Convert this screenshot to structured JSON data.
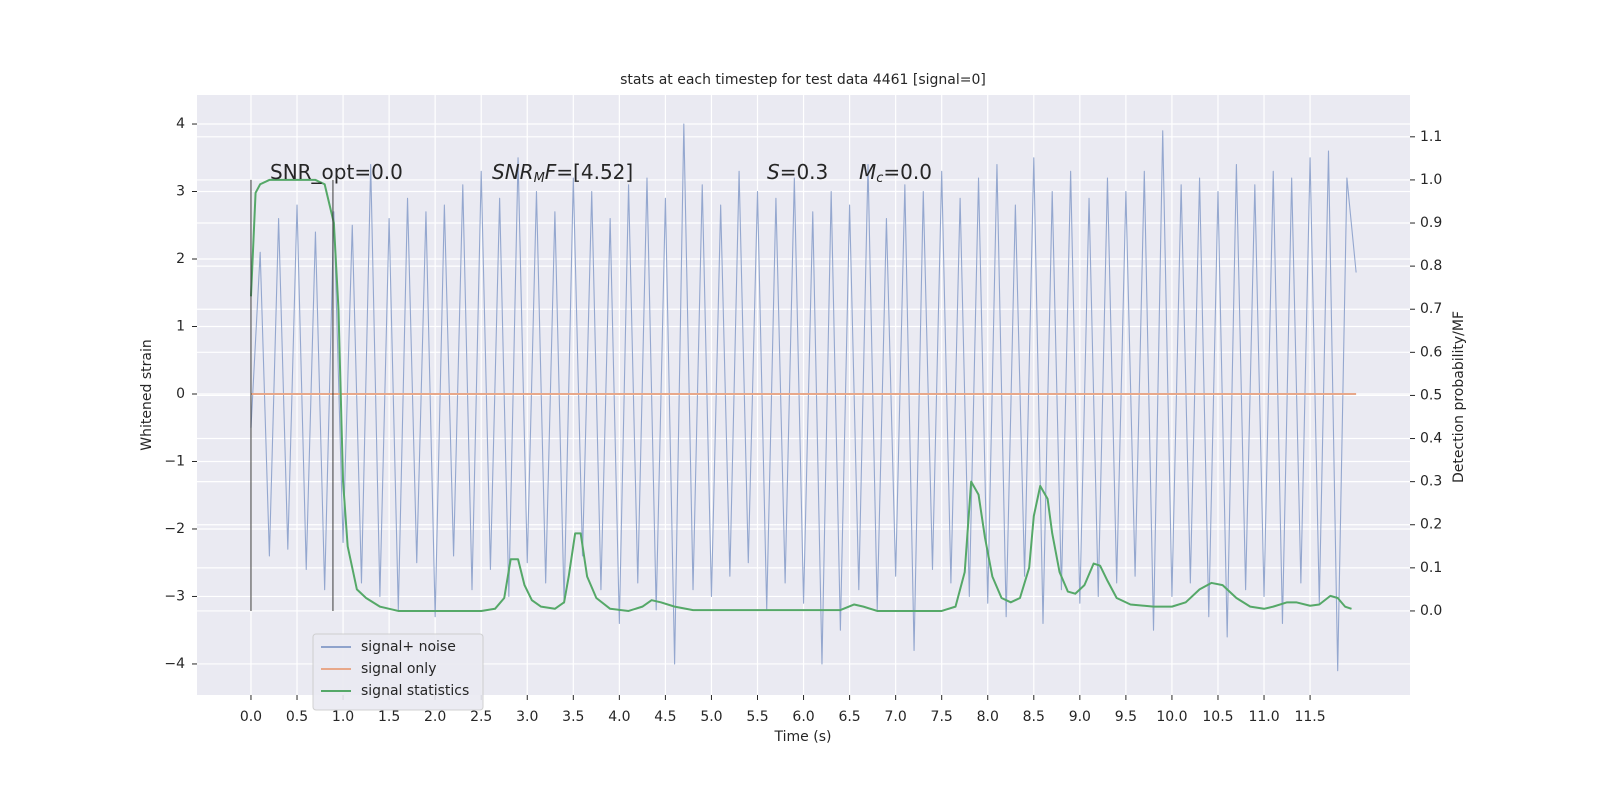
{
  "chart_data": {
    "type": "line",
    "title": "stats at each timestep for test data 4461 [signal=0]",
    "xlabel": "Time (s)",
    "ylabel": "Whitened strain",
    "y2label": "Detection probability/MF",
    "xlim": [
      -0.586,
      12.585
    ],
    "ylim": [
      -4.46,
      4.43
    ],
    "y2lim": [
      -0.195,
      1.197
    ],
    "xticks": [
      {
        "value": 0,
        "label": "0.0"
      },
      {
        "value": 0.5,
        "label": "0.5"
      },
      {
        "value": 1,
        "label": "1.0"
      },
      {
        "value": 1.5,
        "label": "1.5"
      },
      {
        "value": 2,
        "label": "2.0"
      },
      {
        "value": 2.5,
        "label": "2.5"
      },
      {
        "value": 3,
        "label": "3.0"
      },
      {
        "value": 3.5,
        "label": "3.5"
      },
      {
        "value": 4,
        "label": "4.0"
      },
      {
        "value": 4.5,
        "label": "4.5"
      },
      {
        "value": 5,
        "label": "5.0"
      },
      {
        "value": 5.5,
        "label": "5.5"
      },
      {
        "value": 6,
        "label": "6.0"
      },
      {
        "value": 6.5,
        "label": "6.5"
      },
      {
        "value": 7,
        "label": "7.0"
      },
      {
        "value": 7.5,
        "label": "7.5"
      },
      {
        "value": 8,
        "label": "8.0"
      },
      {
        "value": 8.5,
        "label": "8.5"
      },
      {
        "value": 9,
        "label": "9.0"
      },
      {
        "value": 9.5,
        "label": "9.5"
      },
      {
        "value": 10,
        "label": "10.0"
      },
      {
        "value": 10.5,
        "label": "10.5"
      },
      {
        "value": 11,
        "label": "11.0"
      },
      {
        "value": 11.5,
        "label": "11.5"
      }
    ],
    "yticks": [
      {
        "value": -4,
        "label": "−4"
      },
      {
        "value": -3,
        "label": "−3"
      },
      {
        "value": -2,
        "label": "−2"
      },
      {
        "value": -1,
        "label": "−1"
      },
      0,
      1,
      2,
      3,
      4
    ],
    "y2ticks": [
      {
        "value": 0,
        "label": "0.0"
      },
      {
        "value": 0.1,
        "label": "0.1"
      },
      {
        "value": 0.2,
        "label": "0.2"
      },
      {
        "value": 0.3,
        "label": "0.3"
      },
      {
        "value": 0.4,
        "label": "0.4"
      },
      {
        "value": 0.5,
        "label": "0.5"
      },
      {
        "value": 0.6,
        "label": "0.6"
      },
      {
        "value": 0.7,
        "label": "0.7"
      },
      {
        "value": 0.8,
        "label": "0.8"
      },
      {
        "value": 0.9,
        "label": "0.9"
      },
      {
        "value": 1,
        "label": "1.0"
      },
      {
        "value": 1.1,
        "label": "1.1"
      }
    ],
    "grid": true,
    "legend": "lower left",
    "vlines": [
      0,
      0.89
    ],
    "annotations": [
      {
        "text": "SNR_opt=0.0"
      },
      {
        "italic": "SNR",
        "sub": "M",
        "italic2": "F",
        "text": "=[4.52]"
      },
      {
        "italic": "S",
        "text": "=0.3"
      },
      {
        "italic": "M",
        "sub": "c",
        "text": "=0.0"
      }
    ],
    "series": [
      {
        "name": "signal+ noise",
        "color": "#8fa3cc",
        "x": [
          0,
          0.1,
          0.2,
          0.3,
          0.4,
          0.5,
          0.6,
          0.7,
          0.8,
          0.9,
          1,
          1.1,
          1.2,
          1.3,
          1.4,
          1.5,
          1.6,
          1.7,
          1.8,
          1.9,
          2,
          2.1,
          2.2,
          2.3,
          2.4,
          2.5,
          2.6,
          2.7,
          2.8,
          2.9,
          3,
          3.1,
          3.2,
          3.3,
          3.4,
          3.5,
          3.6,
          3.7,
          3.8,
          3.9,
          4,
          4.1,
          4.2,
          4.3,
          4.4,
          4.5,
          4.6,
          4.7,
          4.8,
          4.9,
          5,
          5.1,
          5.2,
          5.3,
          5.4,
          5.5,
          5.6,
          5.7,
          5.8,
          5.9,
          6,
          6.1,
          6.2,
          6.3,
          6.4,
          6.5,
          6.6,
          6.7,
          6.8,
          6.9,
          7,
          7.1,
          7.2,
          7.3,
          7.4,
          7.5,
          7.6,
          7.7,
          7.8,
          7.9,
          8,
          8.1,
          8.2,
          8.3,
          8.4,
          8.5,
          8.6,
          8.7,
          8.8,
          8.9,
          9,
          9.1,
          9.2,
          9.3,
          9.4,
          9.5,
          9.6,
          9.7,
          9.8,
          9.9,
          10,
          10.1,
          10.2,
          10.3,
          10.4,
          10.5,
          10.6,
          10.7,
          10.8,
          10.9,
          11,
          11.1,
          11.2,
          11.3,
          11.4,
          11.5,
          11.6,
          11.7,
          11.8,
          11.9,
          12
        ],
        "values": [
          -0.5,
          2.1,
          -2.4,
          2.6,
          -2.3,
          2.8,
          -2.6,
          2.4,
          -2.9,
          2.7,
          -2.2,
          2.5,
          -2.8,
          3.4,
          -3.0,
          2.6,
          -3.2,
          2.9,
          -2.5,
          2.7,
          -3.3,
          2.8,
          -2.4,
          3.1,
          -2.9,
          3.3,
          -2.6,
          2.9,
          -3.0,
          3.5,
          -2.5,
          3.0,
          -2.8,
          2.7,
          -3.1,
          3.2,
          -2.4,
          3.0,
          -2.9,
          2.6,
          -3.4,
          3.1,
          -2.8,
          3.2,
          -3.2,
          2.9,
          -4.0,
          4.0,
          -2.9,
          3.1,
          -3.0,
          2.8,
          -2.7,
          3.3,
          -2.5,
          3.0,
          -3.2,
          2.9,
          -2.8,
          3.2,
          -3.1,
          2.7,
          -4.0,
          3.0,
          -3.5,
          2.8,
          -2.9,
          3.4,
          -3.2,
          2.6,
          -2.7,
          3.1,
          -3.8,
          3.0,
          -2.6,
          3.3,
          -2.8,
          2.9,
          -3.0,
          3.2,
          -3.1,
          3.4,
          -3.3,
          2.8,
          -2.7,
          3.5,
          -3.4,
          3.0,
          -2.9,
          3.3,
          -3.1,
          2.9,
          -3.0,
          3.2,
          -2.8,
          3.0,
          -2.7,
          3.3,
          -3.5,
          3.9,
          -3.0,
          3.1,
          -2.8,
          3.2,
          -3.3,
          3.0,
          -3.6,
          3.4,
          -2.9,
          3.1,
          -3.0,
          3.3,
          -3.4,
          3.2,
          -2.8,
          3.5,
          -3.1,
          3.6,
          -4.1,
          3.2,
          1.8
        ]
      },
      {
        "name": "signal only",
        "color": "#e8a88a",
        "x": [
          0,
          12
        ],
        "values": [
          0,
          0
        ]
      },
      {
        "name": "signal statistics",
        "color": "#55a868",
        "axis": "y2",
        "x": [
          0,
          0.05,
          0.1,
          0.2,
          0.4,
          0.6,
          0.7,
          0.8,
          0.9,
          0.95,
          1.0,
          1.05,
          1.1,
          1.15,
          1.25,
          1.4,
          1.6,
          2.5,
          2.65,
          2.75,
          2.82,
          2.9,
          2.97,
          3.05,
          3.15,
          3.3,
          3.4,
          3.45,
          3.52,
          3.58,
          3.65,
          3.75,
          3.9,
          4.1,
          4.25,
          4.35,
          4.45,
          4.6,
          4.8,
          6.4,
          6.55,
          6.65,
          6.8,
          7.5,
          7.65,
          7.75,
          7.82,
          7.9,
          7.97,
          8.05,
          8.15,
          8.25,
          8.35,
          8.45,
          8.5,
          8.57,
          8.65,
          8.7,
          8.78,
          8.87,
          8.95,
          9.05,
          9.15,
          9.22,
          9.3,
          9.4,
          9.55,
          9.8,
          10.0,
          10.15,
          10.3,
          10.43,
          10.55,
          10.7,
          10.85,
          11.0,
          11.1,
          11.25,
          11.35,
          11.5,
          11.6,
          11.72,
          11.8,
          11.88,
          11.95
        ],
        "values": [
          0.73,
          0.97,
          0.99,
          1.0,
          1.0,
          1.0,
          1.0,
          0.99,
          0.9,
          0.7,
          0.3,
          0.15,
          0.1,
          0.05,
          0.03,
          0.01,
          0.0,
          0.0,
          0.005,
          0.03,
          0.12,
          0.12,
          0.06,
          0.025,
          0.01,
          0.005,
          0.02,
          0.08,
          0.18,
          0.18,
          0.08,
          0.03,
          0.005,
          0.0,
          0.01,
          0.025,
          0.02,
          0.01,
          0.002,
          0.002,
          0.015,
          0.01,
          0.0,
          0.0,
          0.01,
          0.09,
          0.3,
          0.27,
          0.17,
          0.08,
          0.03,
          0.02,
          0.03,
          0.1,
          0.22,
          0.29,
          0.26,
          0.18,
          0.09,
          0.045,
          0.04,
          0.06,
          0.11,
          0.105,
          0.07,
          0.03,
          0.015,
          0.01,
          0.01,
          0.02,
          0.05,
          0.065,
          0.06,
          0.03,
          0.01,
          0.005,
          0.01,
          0.02,
          0.02,
          0.012,
          0.015,
          0.035,
          0.03,
          0.01,
          0.005
        ]
      }
    ]
  }
}
